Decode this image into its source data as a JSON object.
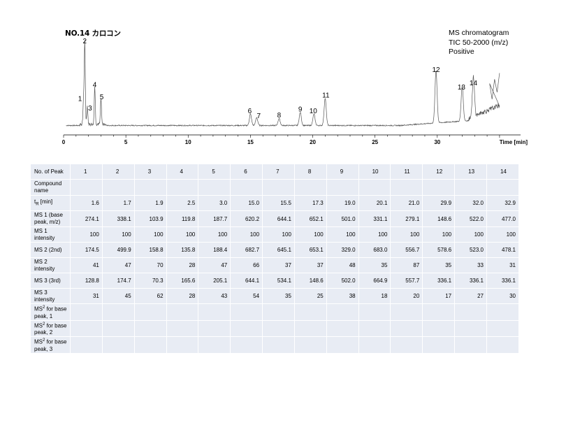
{
  "chart_data": {
    "type": "line",
    "title": "NO.14 カロコン",
    "info_lines": [
      "MS chromatogram",
      "TIC 50-2000 (m/z)",
      "Positive"
    ],
    "xlabel": "Time [min]",
    "xlim": [
      0,
      35
    ],
    "xticks": [
      0,
      5,
      10,
      15,
      20,
      25,
      30
    ],
    "xtick_labels": [
      "0",
      "5",
      "10",
      "15",
      "20",
      "25",
      "30"
    ],
    "grid": false,
    "baseline_level": 0.02,
    "peaks": [
      {
        "label": "1",
        "time": 1.6,
        "height": 0.27
      },
      {
        "label": "2",
        "time": 1.7,
        "height": 0.93
      },
      {
        "label": "3",
        "time": 1.9,
        "height": 0.21
      },
      {
        "label": "4",
        "time": 2.5,
        "height": 0.43
      },
      {
        "label": "5",
        "time": 3.0,
        "height": 0.29
      },
      {
        "label": "6",
        "time": 15.0,
        "height": 0.13
      },
      {
        "label": "7",
        "time": 15.5,
        "height": 0.09
      },
      {
        "label": "8",
        "time": 17.3,
        "height": 0.08
      },
      {
        "label": "9",
        "time": 19.0,
        "height": 0.15
      },
      {
        "label": "10",
        "time": 20.1,
        "height": 0.13
      },
      {
        "label": "11",
        "time": 21.0,
        "height": 0.31
      },
      {
        "label": "12",
        "time": 29.9,
        "height": 0.6
      },
      {
        "label": "13",
        "time": 32.0,
        "height": 0.4
      },
      {
        "label": "14",
        "time": 32.9,
        "height": 0.45
      }
    ]
  },
  "table": {
    "columns": [
      "1",
      "2",
      "3",
      "4",
      "5",
      "6",
      "7",
      "8",
      "9",
      "10",
      "11",
      "12",
      "13",
      "14"
    ],
    "rows": [
      {
        "label": "No. of Peak",
        "type": "peak",
        "values": [
          "1",
          "2",
          "3",
          "4",
          "5",
          "6",
          "7",
          "8",
          "9",
          "10",
          "11",
          "12",
          "13",
          "14"
        ]
      },
      {
        "label": "Compound name",
        "type": "text",
        "values": [
          "",
          "",
          "",
          "",
          "",
          "",
          "",
          "",
          "",
          "",
          "",
          "",
          "",
          ""
        ]
      },
      {
        "label_main": "t",
        "label_sub": "R",
        "label_rest": " [min]",
        "type": "num",
        "values": [
          "1.6",
          "1.7",
          "1.9",
          "2.5",
          "3.0",
          "15.0",
          "15.5",
          "17.3",
          "19.0",
          "20.1",
          "21.0",
          "29.9",
          "32.0",
          "32.9"
        ]
      },
      {
        "label": "MS 1 (base peak, m/z)",
        "type": "num",
        "values": [
          "274.1",
          "338.1",
          "103.9",
          "119.8",
          "187.7",
          "620.2",
          "644.1",
          "652.1",
          "501.0",
          "331.1",
          "279.1",
          "148.6",
          "522.0",
          "477.0"
        ]
      },
      {
        "label": "MS 1 intensity",
        "type": "num",
        "values": [
          "100",
          "100",
          "100",
          "100",
          "100",
          "100",
          "100",
          "100",
          "100",
          "100",
          "100",
          "100",
          "100",
          "100"
        ]
      },
      {
        "label": "MS 2 (2nd)",
        "type": "num",
        "values": [
          "174.5",
          "499.9",
          "158.8",
          "135.8",
          "188.4",
          "682.7",
          "645.1",
          "653.1",
          "329.0",
          "683.0",
          "556.7",
          "578.6",
          "523.0",
          "478.1"
        ]
      },
      {
        "label": "MS 2 intensity",
        "type": "num",
        "values": [
          "41",
          "47",
          "70",
          "28",
          "47",
          "66",
          "37",
          "37",
          "48",
          "35",
          "87",
          "35",
          "33",
          "31"
        ]
      },
      {
        "label": "MS 3 (3rd)",
        "type": "num",
        "values": [
          "128.8",
          "174.7",
          "70.3",
          "165.6",
          "205.1",
          "644.1",
          "534.1",
          "148.6",
          "502.0",
          "664.9",
          "557.7",
          "336.1",
          "336.1",
          "336.1"
        ]
      },
      {
        "label": "MS 3 intensity",
        "type": "num",
        "values": [
          "31",
          "45",
          "62",
          "28",
          "43",
          "54",
          "35",
          "25",
          "38",
          "18",
          "20",
          "17",
          "27",
          "30"
        ]
      },
      {
        "label_main": "MS",
        "label_sup": "2",
        "label_rest": " for base peak, 1",
        "type": "text",
        "values": [
          "",
          "",
          "",
          "",
          "",
          "",
          "",
          "",
          "",
          "",
          "",
          "",
          "",
          ""
        ]
      },
      {
        "label_main": "MS",
        "label_sup": "2",
        "label_rest": " for base peak, 2",
        "type": "text",
        "values": [
          "",
          "",
          "",
          "",
          "",
          "",
          "",
          "",
          "",
          "",
          "",
          "",
          "",
          ""
        ]
      },
      {
        "label_main": "MS",
        "label_sup": "2",
        "label_rest": " for base peak, 3",
        "type": "text",
        "values": [
          "",
          "",
          "",
          "",
          "",
          "",
          "",
          "",
          "",
          "",
          "",
          "",
          "",
          ""
        ]
      }
    ]
  }
}
